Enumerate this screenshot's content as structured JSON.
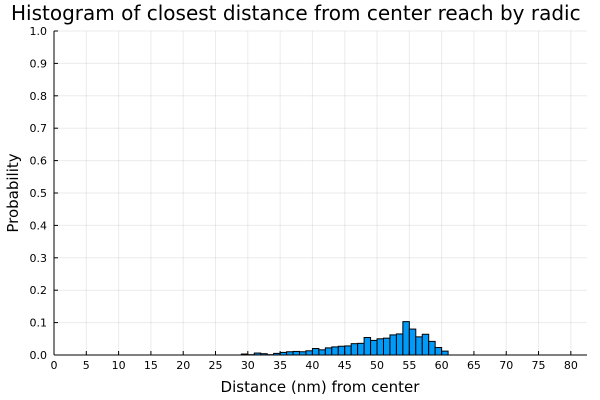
{
  "chart_data": {
    "type": "bar",
    "title": "Histogram of closest distance from center reach by radic",
    "xlabel": "Distance (nm) from center",
    "ylabel": "Probability",
    "xlim": [
      0,
      82.5
    ],
    "ylim": [
      0,
      1.0
    ],
    "x_ticks": [
      0,
      5,
      10,
      15,
      20,
      25,
      30,
      35,
      40,
      45,
      50,
      55,
      60,
      65,
      70,
      75,
      80
    ],
    "x_tick_labels": [
      "0",
      "5",
      "10",
      "15",
      "20",
      "25",
      "30",
      "35",
      "40",
      "45",
      "50",
      "55",
      "60",
      "65",
      "70",
      "75",
      "80"
    ],
    "y_ticks": [
      0,
      0.1,
      0.2,
      0.3,
      0.4,
      0.5,
      0.6,
      0.7,
      0.8,
      0.9,
      1.0
    ],
    "y_tick_labels": [
      "0.0",
      "0.1",
      "0.2",
      "0.3",
      "0.4",
      "0.5",
      "0.6",
      "0.7",
      "0.8",
      "0.9",
      "1.0"
    ],
    "grid": true,
    "legend": false,
    "bar_color": "#009af9",
    "bar_edge_color": "#000000",
    "bin_width": 1,
    "bins": [
      {
        "x0": 29,
        "value": 0.003
      },
      {
        "x0": 30,
        "value": 0.001
      },
      {
        "x0": 31,
        "value": 0.006
      },
      {
        "x0": 32,
        "value": 0.004
      },
      {
        "x0": 33,
        "value": 0.001
      },
      {
        "x0": 34,
        "value": 0.005
      },
      {
        "x0": 35,
        "value": 0.008
      },
      {
        "x0": 36,
        "value": 0.01
      },
      {
        "x0": 37,
        "value": 0.011
      },
      {
        "x0": 38,
        "value": 0.01
      },
      {
        "x0": 39,
        "value": 0.013
      },
      {
        "x0": 40,
        "value": 0.02
      },
      {
        "x0": 41,
        "value": 0.016
      },
      {
        "x0": 42,
        "value": 0.022
      },
      {
        "x0": 43,
        "value": 0.025
      },
      {
        "x0": 44,
        "value": 0.027
      },
      {
        "x0": 45,
        "value": 0.028
      },
      {
        "x0": 46,
        "value": 0.035
      },
      {
        "x0": 47,
        "value": 0.036
      },
      {
        "x0": 48,
        "value": 0.054
      },
      {
        "x0": 49,
        "value": 0.045
      },
      {
        "x0": 50,
        "value": 0.05
      },
      {
        "x0": 51,
        "value": 0.052
      },
      {
        "x0": 52,
        "value": 0.062
      },
      {
        "x0": 53,
        "value": 0.065
      },
      {
        "x0": 54,
        "value": 0.103
      },
      {
        "x0": 55,
        "value": 0.08
      },
      {
        "x0": 56,
        "value": 0.056
      },
      {
        "x0": 57,
        "value": 0.064
      },
      {
        "x0": 58,
        "value": 0.042
      },
      {
        "x0": 59,
        "value": 0.023
      },
      {
        "x0": 60,
        "value": 0.012
      }
    ]
  }
}
